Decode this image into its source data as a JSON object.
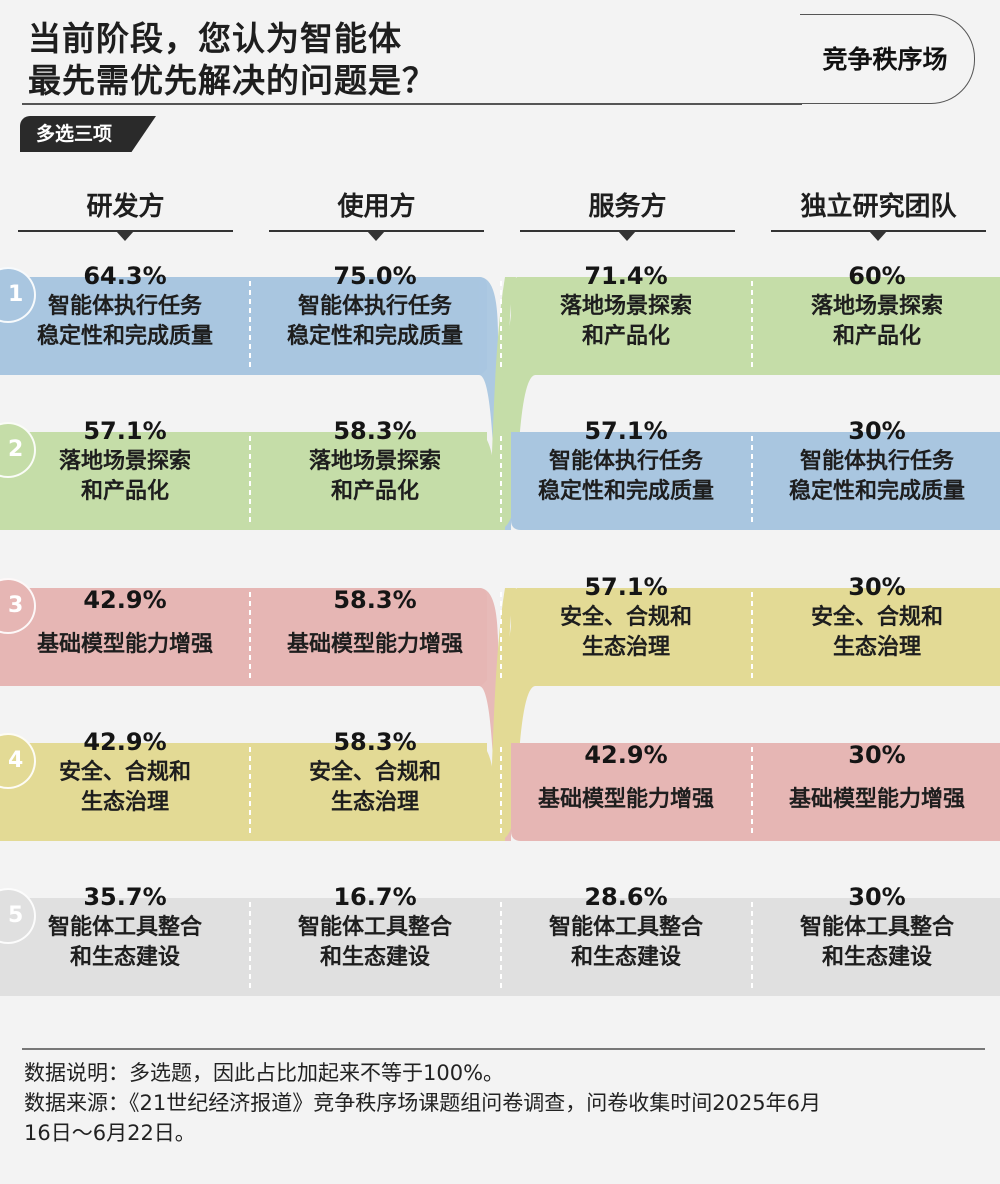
{
  "title": {
    "line1": "当前阶段，您认为智能体",
    "line2": "最先需优先解决的问题是？"
  },
  "brand": "竞争秩序场",
  "badge": "多选三项",
  "columns": [
    "研发方",
    "使用方",
    "服务方",
    "独立研究团队"
  ],
  "ranks": [
    "1",
    "2",
    "3",
    "4",
    "5"
  ],
  "colors": {
    "blue": "#a9c6e0",
    "green": "#c5dda8",
    "pink": "#e6b6b4",
    "yellow": "#e3da95",
    "gray": "#e0e0e0"
  },
  "chart_data": {
    "type": "table",
    "title": "当前阶段，您认为智能体最先需优先解决的问题是？",
    "columns": [
      "研发方",
      "使用方",
      "服务方",
      "独立研究团队"
    ],
    "rows": [
      {
        "rank": 1,
        "cells": [
          {
            "pct": "64.3%",
            "label": "智能体执行任务\n稳定性和完成质量",
            "color": "blue"
          },
          {
            "pct": "75.0%",
            "label": "智能体执行任务\n稳定性和完成质量",
            "color": "blue"
          },
          {
            "pct": "71.4%",
            "label": "落地场景探索\n和产品化",
            "color": "green"
          },
          {
            "pct": "60%",
            "label": "落地场景探索\n和产品化",
            "color": "green"
          }
        ]
      },
      {
        "rank": 2,
        "cells": [
          {
            "pct": "57.1%",
            "label": "落地场景探索\n和产品化",
            "color": "green"
          },
          {
            "pct": "58.3%",
            "label": "落地场景探索\n和产品化",
            "color": "green"
          },
          {
            "pct": "57.1%",
            "label": "智能体执行任务\n稳定性和完成质量",
            "color": "blue"
          },
          {
            "pct": "30%",
            "label": "智能体执行任务\n稳定性和完成质量",
            "color": "blue"
          }
        ]
      },
      {
        "rank": 3,
        "cells": [
          {
            "pct": "42.9%",
            "label": "基础模型能力增强",
            "color": "pink"
          },
          {
            "pct": "58.3%",
            "label": "基础模型能力增强",
            "color": "pink"
          },
          {
            "pct": "57.1%",
            "label": "安全、合规和\n生态治理",
            "color": "yellow"
          },
          {
            "pct": "30%",
            "label": "安全、合规和\n生态治理",
            "color": "yellow"
          }
        ]
      },
      {
        "rank": 4,
        "cells": [
          {
            "pct": "42.9%",
            "label": "安全、合规和\n生态治理",
            "color": "yellow"
          },
          {
            "pct": "58.3%",
            "label": "安全、合规和\n生态治理",
            "color": "yellow"
          },
          {
            "pct": "42.9%",
            "label": "基础模型能力增强",
            "color": "pink"
          },
          {
            "pct": "30%",
            "label": "基础模型能力增强",
            "color": "pink"
          }
        ]
      },
      {
        "rank": 5,
        "cells": [
          {
            "pct": "35.7%",
            "label": "智能体工具整合\n和生态建设",
            "color": "gray"
          },
          {
            "pct": "16.7%",
            "label": "智能体工具整合\n和生态建设",
            "color": "gray"
          },
          {
            "pct": "28.6%",
            "label": "智能体工具整合\n和生态建设",
            "color": "gray"
          },
          {
            "pct": "30%",
            "label": "智能体工具整合\n和生态建设",
            "color": "gray"
          }
        ]
      }
    ]
  },
  "notes": {
    "line1": "数据说明：多选题，因此占比加起来不等于100%。",
    "line2": "数据来源：《21世纪经济报道》竞争秩序场课题组问卷调查，问卷收集时间2025年6月",
    "line3": "16日～6月22日。"
  }
}
